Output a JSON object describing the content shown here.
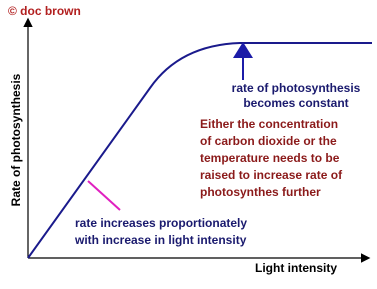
{
  "copyright": "© doc brown",
  "y_axis_label": "Rate of photosynthesis",
  "x_axis_label": "Light intensity",
  "plateau_note": {
    "lines": [
      "rate of photosynthesis",
      "becomes constant"
    ]
  },
  "limiting_note": {
    "lines": [
      "Either the concentration",
      "of carbon dioxide or the",
      "temperature needs to be",
      "raised to increase rate of",
      "photosynthes further"
    ]
  },
  "slope_note": {
    "lines": [
      "rate increases proportionately",
      "with increase in light intensity"
    ]
  }
}
